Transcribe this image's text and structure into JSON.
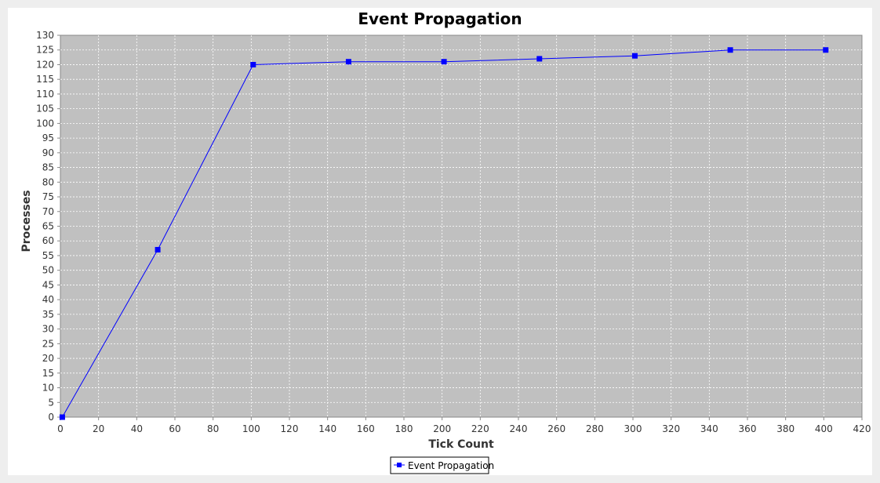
{
  "chart_data": {
    "type": "line",
    "title": "Event Propagation",
    "xlabel": "Tick Count",
    "ylabel": "Processes",
    "xlim": [
      0,
      420
    ],
    "ylim": [
      0,
      130
    ],
    "x_ticks": [
      0,
      20,
      40,
      60,
      80,
      100,
      120,
      140,
      160,
      180,
      200,
      220,
      240,
      260,
      280,
      300,
      320,
      340,
      360,
      380,
      400,
      420
    ],
    "y_ticks": [
      0,
      5,
      10,
      15,
      20,
      25,
      30,
      35,
      40,
      45,
      50,
      55,
      60,
      65,
      70,
      75,
      80,
      85,
      90,
      95,
      100,
      105,
      110,
      115,
      120,
      125,
      130
    ],
    "grid": true,
    "legend_position": "bottom",
    "series": [
      {
        "name": "Event Propagation",
        "color": "#0000ff",
        "marker": "square",
        "x": [
          1,
          51,
          101,
          151,
          201,
          251,
          301,
          351,
          401
        ],
        "y": [
          0,
          57,
          120,
          121,
          121,
          122,
          123,
          125,
          125
        ]
      }
    ]
  },
  "colors": {
    "page_background": "#eeeeee",
    "panel_background": "#ffffff",
    "plot_background": "#c0c0c0",
    "gridline": "#ffffff",
    "series": "#0000ff"
  }
}
